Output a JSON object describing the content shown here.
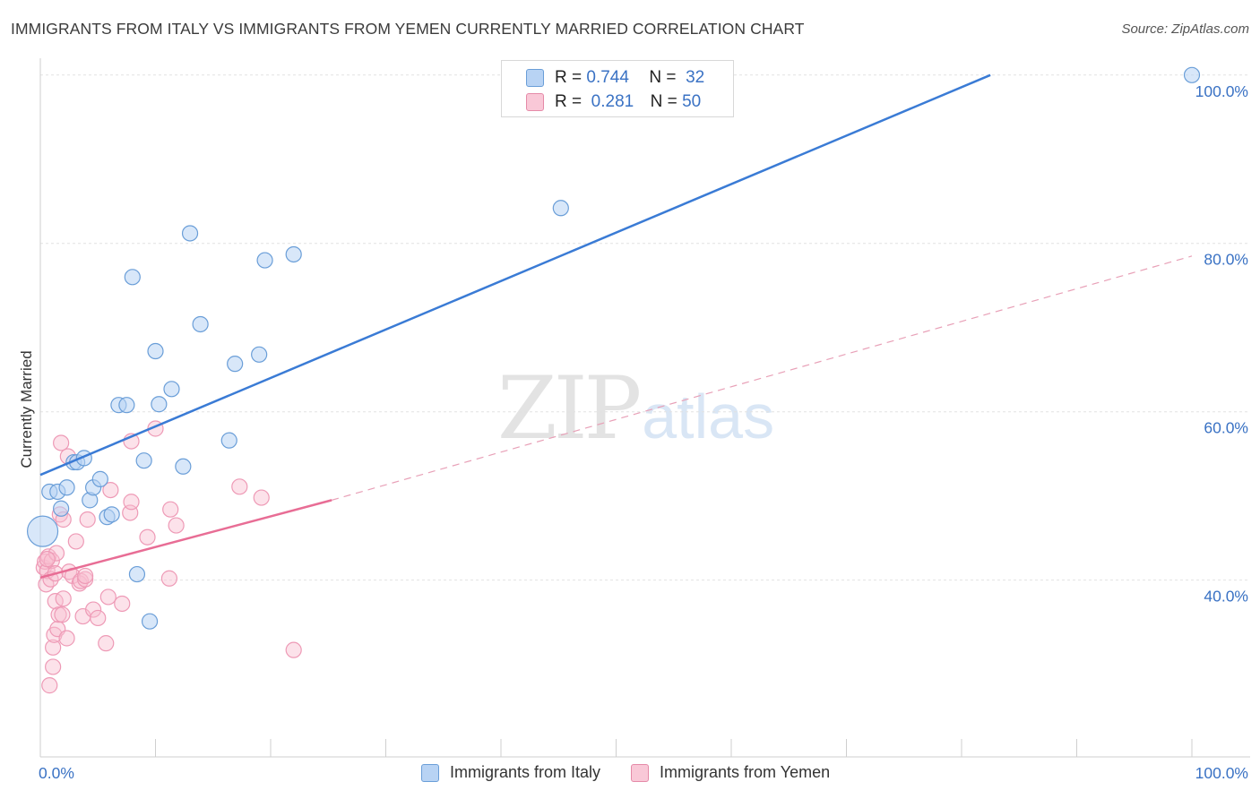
{
  "header": {
    "title": "IMMIGRANTS FROM ITALY VS IMMIGRANTS FROM YEMEN CURRENTLY MARRIED CORRELATION CHART",
    "source": "Source: ZipAtlas.com"
  },
  "watermark": {
    "zip": "ZIP",
    "atlas": "atlas"
  },
  "legend": {
    "rows": [
      {
        "r_label": "R =",
        "r_value": "0.744",
        "n_label": "N =",
        "n_value": "32",
        "color": "#b8d3f4",
        "border": "#6a9ed8"
      },
      {
        "r_label": "R =",
        "r_value": "0.281",
        "n_label": "N =",
        "n_value": "50",
        "color": "#f9c8d7",
        "border": "#e58aa8"
      }
    ]
  },
  "bottom_legend": {
    "items": [
      {
        "label": "Immigrants from Italy",
        "color": "#b8d3f4",
        "border": "#6a9ed8"
      },
      {
        "label": "Immigrants from Yemen",
        "color": "#f9c8d7",
        "border": "#e58aa8"
      }
    ]
  },
  "chart_data": {
    "type": "scatter",
    "title": "IMMIGRANTS FROM ITALY VS IMMIGRANTS FROM YEMEN CURRENTLY MARRIED CORRELATION CHART",
    "xlabel": "",
    "ylabel": "Currently Married",
    "xlim": [
      0,
      100
    ],
    "ylim": [
      19,
      102
    ],
    "x_tick_labels": [
      "0.0%",
      "100.0%"
    ],
    "y_ticks": [
      {
        "value": 40,
        "label": "40.0%"
      },
      {
        "value": 60,
        "label": "60.0%"
      },
      {
        "value": 80,
        "label": "80.0%"
      },
      {
        "value": 100,
        "label": "100.0%"
      }
    ],
    "colors": {
      "italy": "#3a7bd5",
      "yemen": "#e86d95",
      "tick": "#3a72c4"
    },
    "series": [
      {
        "name": "Immigrants from Italy",
        "R": 0.744,
        "N": 32,
        "trend": {
          "x": [
            0,
            82.5
          ],
          "y": [
            52.5,
            100
          ]
        },
        "points": [
          {
            "x": 0.2,
            "y": 45.8,
            "big": true
          },
          {
            "x": 0.8,
            "y": 50.5
          },
          {
            "x": 1.5,
            "y": 50.5
          },
          {
            "x": 1.8,
            "y": 48.5
          },
          {
            "x": 2.3,
            "y": 51.0
          },
          {
            "x": 2.9,
            "y": 54.0
          },
          {
            "x": 3.2,
            "y": 54.0
          },
          {
            "x": 3.8,
            "y": 54.5
          },
          {
            "x": 4.3,
            "y": 49.5
          },
          {
            "x": 4.6,
            "y": 51.0
          },
          {
            "x": 5.2,
            "y": 52.0
          },
          {
            "x": 5.8,
            "y": 47.5
          },
          {
            "x": 6.2,
            "y": 47.8
          },
          {
            "x": 6.8,
            "y": 60.8
          },
          {
            "x": 7.5,
            "y": 60.8
          },
          {
            "x": 8.0,
            "y": 76.0
          },
          {
            "x": 8.4,
            "y": 40.7
          },
          {
            "x": 9.0,
            "y": 54.2
          },
          {
            "x": 9.5,
            "y": 35.1
          },
          {
            "x": 10.0,
            "y": 67.2
          },
          {
            "x": 10.3,
            "y": 60.9
          },
          {
            "x": 11.4,
            "y": 62.7
          },
          {
            "x": 12.4,
            "y": 53.5
          },
          {
            "x": 13.0,
            "y": 81.2
          },
          {
            "x": 13.9,
            "y": 70.4
          },
          {
            "x": 16.4,
            "y": 56.6
          },
          {
            "x": 16.9,
            "y": 65.7
          },
          {
            "x": 19.0,
            "y": 66.8
          },
          {
            "x": 19.5,
            "y": 78.0
          },
          {
            "x": 22.0,
            "y": 78.7
          },
          {
            "x": 45.2,
            "y": 84.2
          },
          {
            "x": 100.0,
            "y": 100.0
          }
        ]
      },
      {
        "name": "Immigrants from Yemen",
        "R": 0.281,
        "N": 50,
        "trend": {
          "x": [
            0,
            25.3
          ],
          "y": [
            40.3,
            49.5
          ],
          "dashed_x": [
            25.3,
            100
          ],
          "dashed_y": [
            49.5,
            78.5
          ]
        },
        "points": [
          {
            "x": 0.3,
            "y": 41.5
          },
          {
            "x": 0.4,
            "y": 42.2
          },
          {
            "x": 0.5,
            "y": 39.5
          },
          {
            "x": 0.6,
            "y": 41.1
          },
          {
            "x": 0.7,
            "y": 42.8
          },
          {
            "x": 0.8,
            "y": 27.5
          },
          {
            "x": 0.9,
            "y": 40.1
          },
          {
            "x": 1.0,
            "y": 42.3
          },
          {
            "x": 1.1,
            "y": 32.0
          },
          {
            "x": 1.1,
            "y": 29.7
          },
          {
            "x": 1.2,
            "y": 33.5
          },
          {
            "x": 1.3,
            "y": 37.5
          },
          {
            "x": 1.4,
            "y": 43.2
          },
          {
            "x": 1.5,
            "y": 34.2
          },
          {
            "x": 1.6,
            "y": 35.9
          },
          {
            "x": 1.7,
            "y": 47.8
          },
          {
            "x": 1.8,
            "y": 56.3
          },
          {
            "x": 1.9,
            "y": 35.9
          },
          {
            "x": 2.0,
            "y": 37.8
          },
          {
            "x": 2.0,
            "y": 47.2
          },
          {
            "x": 2.3,
            "y": 33.1
          },
          {
            "x": 2.4,
            "y": 54.7
          },
          {
            "x": 2.5,
            "y": 41.0
          },
          {
            "x": 2.8,
            "y": 40.5
          },
          {
            "x": 3.1,
            "y": 44.6
          },
          {
            "x": 3.4,
            "y": 39.6
          },
          {
            "x": 3.5,
            "y": 39.9
          },
          {
            "x": 3.7,
            "y": 35.7
          },
          {
            "x": 3.9,
            "y": 40.1
          },
          {
            "x": 3.9,
            "y": 40.5
          },
          {
            "x": 4.1,
            "y": 47.2
          },
          {
            "x": 4.6,
            "y": 36.5
          },
          {
            "x": 5.0,
            "y": 35.5
          },
          {
            "x": 5.7,
            "y": 32.5
          },
          {
            "x": 5.9,
            "y": 38.0
          },
          {
            "x": 6.1,
            "y": 50.7
          },
          {
            "x": 7.1,
            "y": 37.2
          },
          {
            "x": 7.8,
            "y": 48.0
          },
          {
            "x": 7.9,
            "y": 56.5
          },
          {
            "x": 7.9,
            "y": 49.3
          },
          {
            "x": 9.3,
            "y": 45.1
          },
          {
            "x": 10.0,
            "y": 58.0
          },
          {
            "x": 11.2,
            "y": 40.2
          },
          {
            "x": 11.3,
            "y": 48.4
          },
          {
            "x": 11.8,
            "y": 46.5
          },
          {
            "x": 17.3,
            "y": 51.1
          },
          {
            "x": 19.2,
            "y": 49.8
          },
          {
            "x": 22.0,
            "y": 31.7
          },
          {
            "x": 0.6,
            "y": 42.5
          },
          {
            "x": 1.3,
            "y": 40.8
          }
        ]
      }
    ]
  }
}
